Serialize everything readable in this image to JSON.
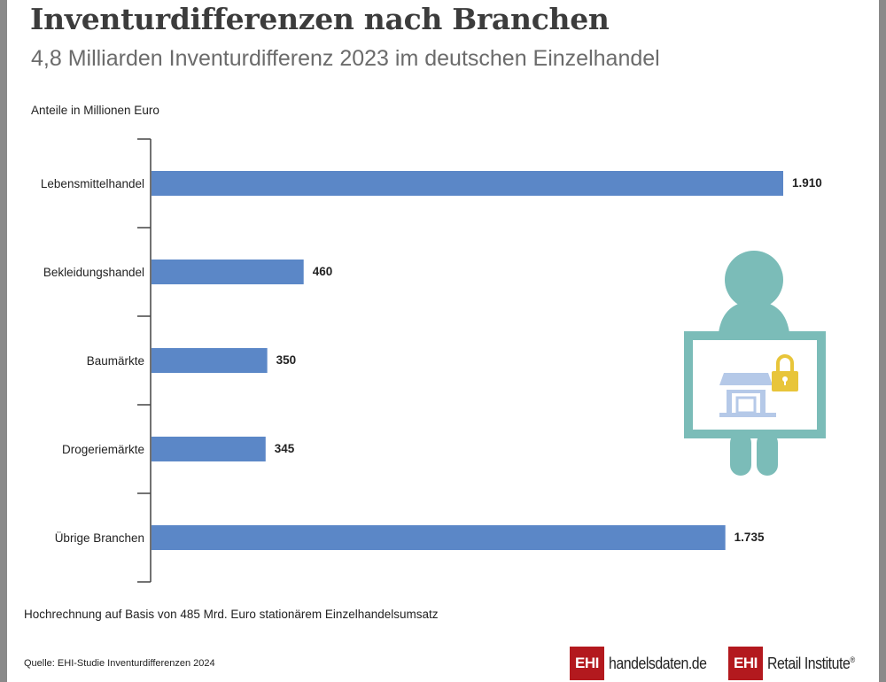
{
  "header": {
    "title": "Inventurdifferenzen nach Branchen",
    "subtitle": "4,8 Milliarden Inventurdifferenz 2023 im deutschen Einzelhandel",
    "unit_label": "Anteile in Millionen Euro"
  },
  "chart_data": {
    "type": "bar",
    "orientation": "horizontal",
    "categories": [
      "Lebensmittelhandel",
      "Bekleidungshandel",
      "Baumärkte",
      "Drogeriemärkte",
      "Übrige Branchen"
    ],
    "values": [
      1910,
      460,
      350,
      345,
      1735
    ],
    "value_labels": [
      "1.910",
      "460",
      "350",
      "345",
      "1.735"
    ],
    "ylabel": "Anteile in Millionen Euro",
    "bar_color": "#5b87c7",
    "grid": false,
    "legend": "none"
  },
  "footer": {
    "note": "Hochrechnung auf Basis von 485 Mrd. Euro stationärem Einzelhandelsumsatz",
    "source": "Quelle: EHI-Studie Inventurdifferenzen 2024",
    "logo1_box": "EHI",
    "logo1_text": "handelsdaten.de",
    "logo2_box": "EHI",
    "logo2_text": "Retail Institute",
    "logo2_mark": "®"
  },
  "illustration": {
    "icon": "person-holding-shop-sign-icon",
    "colors": {
      "person": "#7bbcb8",
      "shop": "#b5c9e8",
      "lock": "#e8c53a"
    }
  }
}
